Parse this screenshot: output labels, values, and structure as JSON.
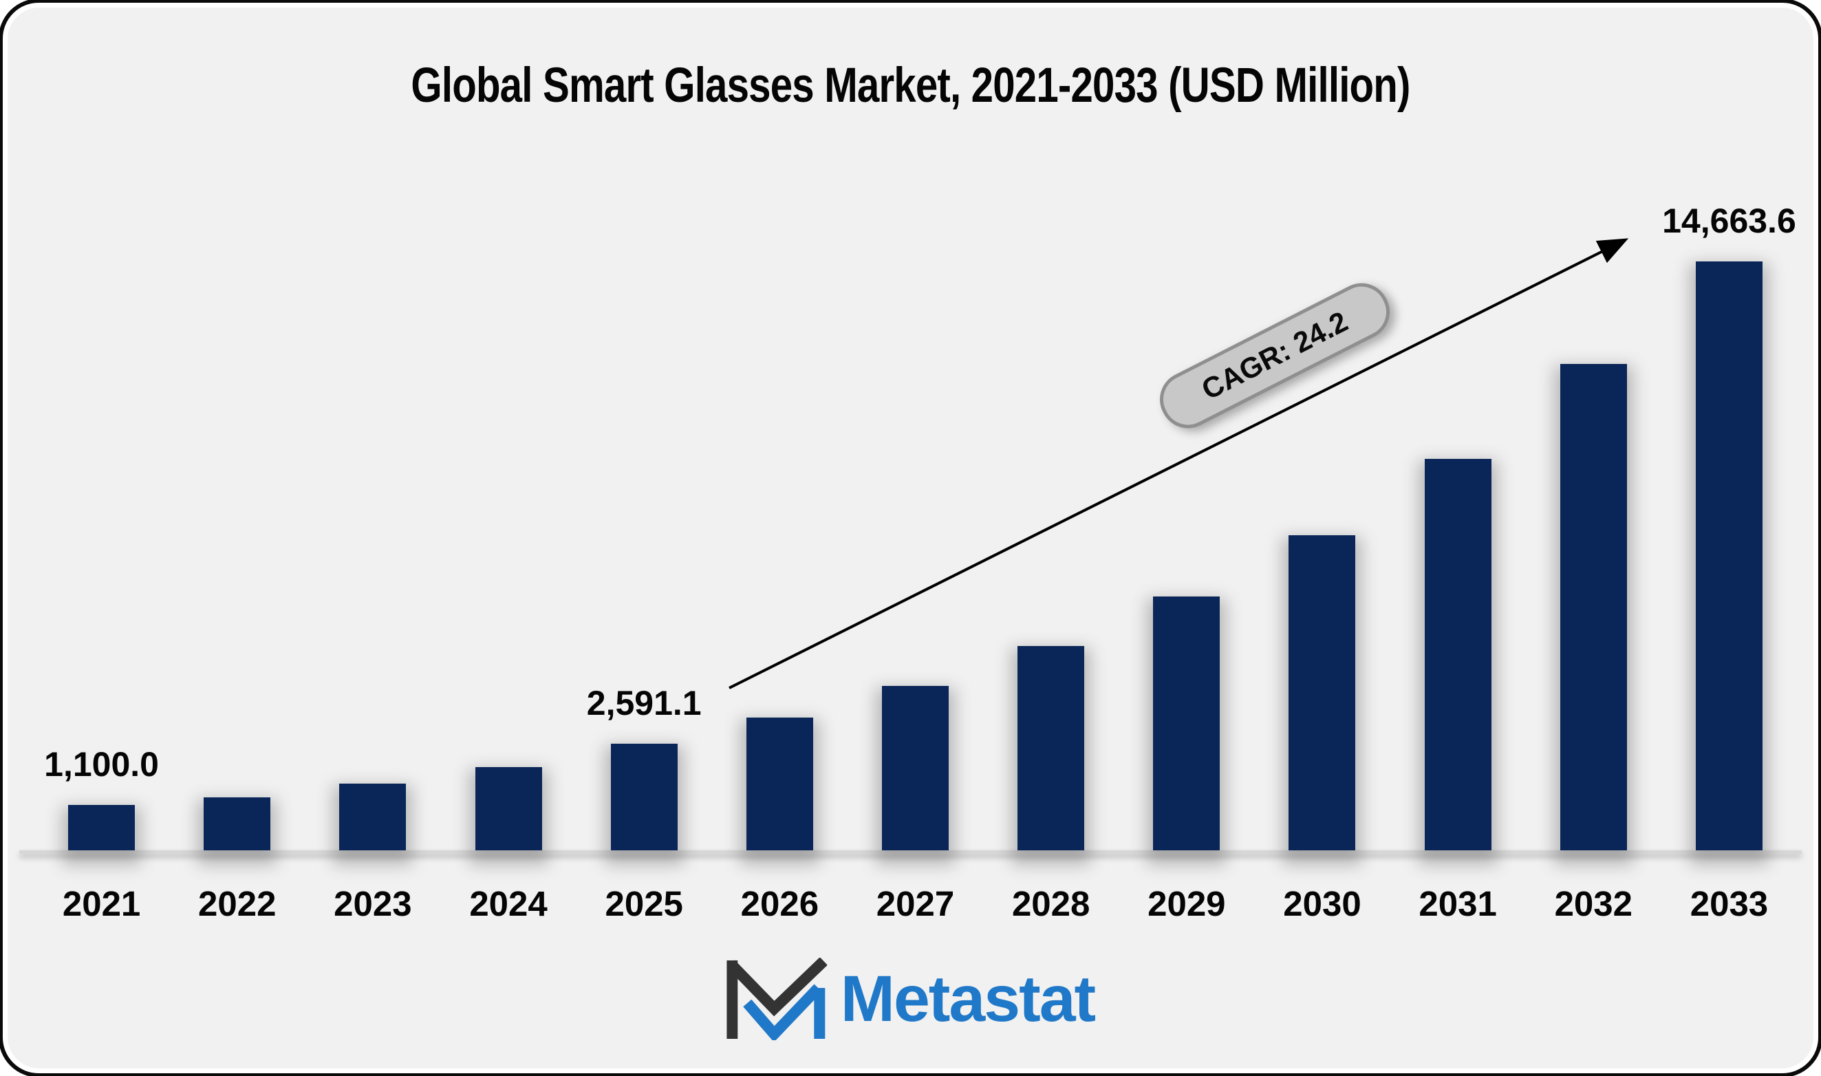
{
  "chart_data": {
    "type": "bar",
    "title": "Global Smart Glasses Market, 2021-2033 (USD Million)",
    "categories": [
      "2021",
      "2022",
      "2023",
      "2024",
      "2025",
      "2026",
      "2027",
      "2028",
      "2029",
      "2030",
      "2031",
      "2032",
      "2033"
    ],
    "values": [
      1100.0,
      1290,
      1620,
      2030,
      2591.1,
      3220,
      4000,
      4960,
      6160,
      7650,
      9510,
      11810,
      14663.6
    ],
    "visible_value_labels": [
      {
        "category": "2021",
        "text": "1,100.0"
      },
      {
        "category": "2025",
        "text": "2,591.1"
      },
      {
        "category": "2033",
        "text": "14,663.6"
      }
    ],
    "annotation": "CAGR: 24.2",
    "xlabel": "",
    "ylabel": "",
    "ylim": [
      0,
      14663.6
    ],
    "grid": false,
    "legend": false
  },
  "branding": {
    "logo_text": "Metastat"
  },
  "colors": {
    "bar": "#0a2658",
    "panel_background": "#f1f1f1",
    "frame_border": "#0a0a0a",
    "axis_line": "#d7d7d7",
    "annotation_pill_fill": "#c8c8c8",
    "annotation_pill_border": "#8f8f8f",
    "logo_blue": "#2078c8",
    "logo_dark": "#333333"
  }
}
